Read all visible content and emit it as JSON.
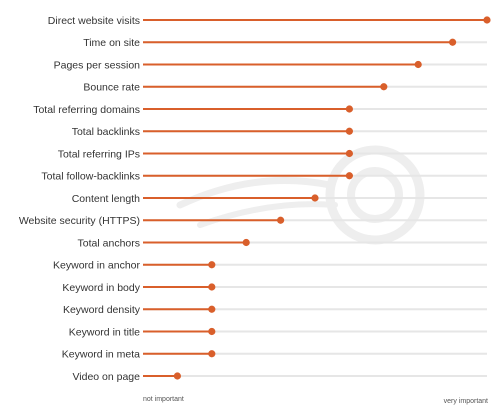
{
  "chart_data": {
    "type": "lollipop",
    "orientation": "horizontal",
    "categories": [
      "Direct website visits",
      "Time on site",
      "Pages per session",
      "Bounce rate",
      "Total referring domains",
      "Total backlinks",
      "Total referring IPs",
      "Total follow-backlinks",
      "Content length",
      "Website security (HTTPS)",
      "Total anchors",
      "Keyword in anchor",
      "Keyword in body",
      "Keyword density",
      "Keyword in title",
      "Keyword in meta",
      "Video on page"
    ],
    "values": [
      1.0,
      0.9,
      0.8,
      0.7,
      0.6,
      0.6,
      0.6,
      0.6,
      0.5,
      0.4,
      0.3,
      0.2,
      0.2,
      0.2,
      0.2,
      0.2,
      0.1
    ],
    "xlim": [
      0,
      1
    ],
    "scale_min_label": "not important",
    "scale_max_label": "very important",
    "grid": false,
    "legend": "none",
    "colors": {
      "accent": "#d95f2b",
      "track": "#e6e6e6",
      "label": "#333333",
      "watermark": "#eeeeee"
    }
  }
}
